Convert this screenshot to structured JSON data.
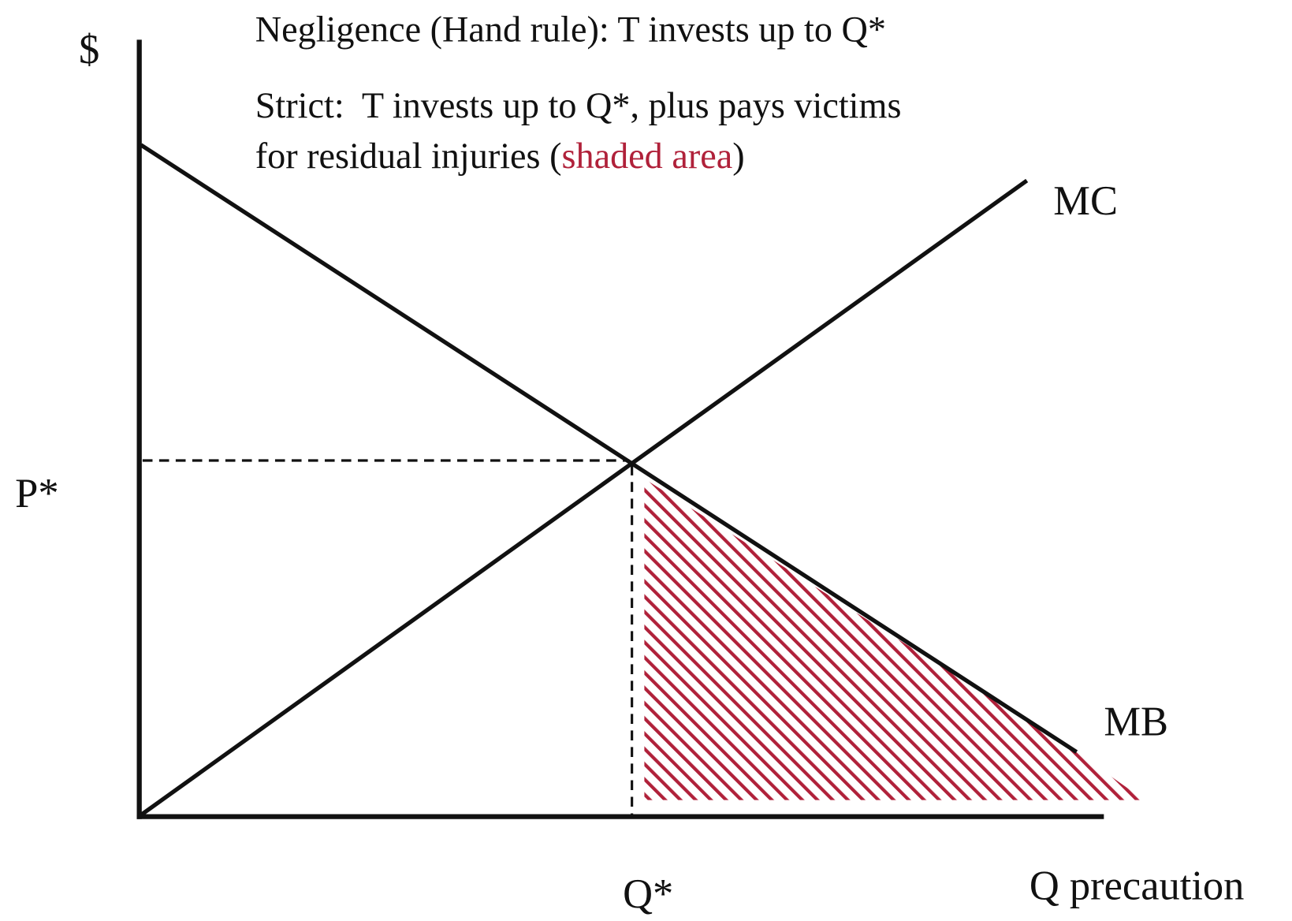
{
  "axes": {
    "y_label": "$",
    "x_label": "Q precaution",
    "p_star": "P*",
    "q_star": "Q*"
  },
  "curves": {
    "mc": "MC",
    "mb": "MB"
  },
  "annotations": {
    "negligence": "Negligence (Hand rule): T invests up to Q*",
    "strict_line1": "Strict:  T invests up to Q*, plus pays victims",
    "strict_line2": [
      "for residual injuries (",
      "shaded area",
      ")"
    ]
  }
}
